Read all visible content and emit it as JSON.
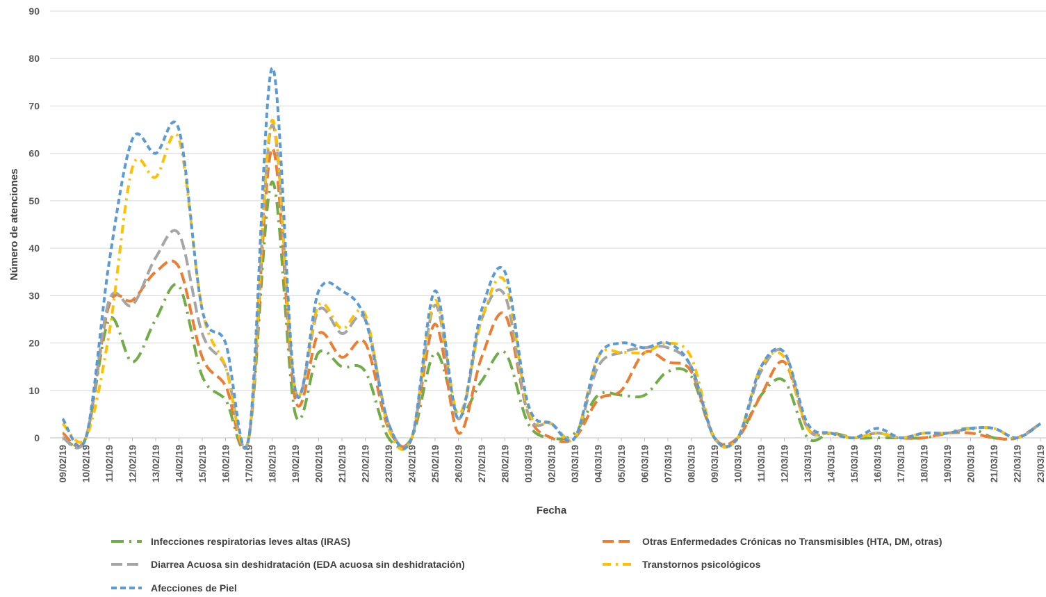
{
  "chart_data": {
    "type": "line",
    "xlabel": "Fecha",
    "ylabel": "Número de atenciones",
    "ylim": [
      0,
      90
    ],
    "yticks": [
      0,
      10,
      20,
      30,
      40,
      50,
      60,
      70,
      80,
      90
    ],
    "grid": "horizontal",
    "legend_position": "bottom",
    "categories": [
      "09/02/19",
      "10/02/19",
      "11/02/19",
      "12/02/19",
      "13/02/19",
      "14/02/19",
      "15/02/19",
      "16/02/19",
      "17/02/19",
      "18/02/19",
      "19/02/19",
      "20/02/19",
      "21/02/19",
      "22/02/19",
      "23/02/19",
      "24/02/19",
      "25/02/19",
      "26/02/19",
      "27/02/19",
      "28/02/19",
      "01/03/19",
      "02/03/19",
      "03/03/19",
      "04/03/19",
      "05/03/19",
      "06/03/19",
      "07/03/19",
      "08/03/19",
      "09/03/19",
      "10/03/19",
      "11/03/19",
      "12/03/19",
      "13/03/19",
      "14/03/19",
      "15/03/19",
      "16/03/19",
      "17/03/19",
      "18/03/19",
      "19/03/19",
      "20/03/19",
      "21/03/19",
      "22/03/19",
      "23/03/19"
    ],
    "series": [
      {
        "name": "Infecciones respiratorias leves altas (IRAS)",
        "color": "#70AD47",
        "dash": "long-dash-dot",
        "values": [
          0,
          0,
          25,
          16,
          25,
          32,
          13,
          8,
          0,
          54,
          5,
          18,
          15,
          14,
          0,
          0,
          18,
          5,
          12,
          18,
          3,
          0,
          1,
          9,
          9,
          9,
          14,
          13,
          0,
          0,
          9,
          12,
          0,
          1,
          0,
          0,
          0,
          0,
          1,
          2,
          0,
          0,
          3
        ]
      },
      {
        "name": "Otras Enfermedades Crónicas no Transmisibles (HTA, DM, otras)",
        "color": "#ED7D31",
        "dash": "long-dash",
        "values": [
          1,
          0,
          28,
          29,
          35,
          36,
          17,
          11,
          0,
          61,
          8,
          22,
          17,
          20,
          2,
          0,
          24,
          1,
          17,
          26,
          5,
          0,
          0,
          8,
          10,
          18,
          16,
          14,
          0,
          0,
          9,
          16,
          2,
          1,
          0,
          1,
          0,
          0,
          1,
          1,
          0,
          0,
          3
        ]
      },
      {
        "name": "Diarrea Acuosa sin deshidratación (EDA acuosa sin deshidratación)",
        "color": "#A5A5A5",
        "dash": "long-dash",
        "values": [
          0,
          0,
          29,
          28,
          38,
          43,
          22,
          15,
          0,
          66,
          10,
          27,
          22,
          25,
          3,
          0,
          28,
          4,
          25,
          30,
          5,
          3,
          0,
          15,
          18,
          19,
          19,
          15,
          0,
          0,
          14,
          18,
          2,
          1,
          0,
          1,
          0,
          1,
          1,
          2,
          2,
          0,
          3
        ]
      },
      {
        "name": "Transtornos psicológicos",
        "color": "#FFC000",
        "dash": "dash-dot",
        "values": [
          3,
          0,
          22,
          57,
          55,
          63,
          27,
          15,
          0,
          67,
          10,
          28,
          23,
          26,
          2,
          0,
          29,
          5,
          25,
          33,
          6,
          3,
          0,
          17,
          18,
          18,
          20,
          17,
          0,
          0,
          15,
          17,
          2,
          1,
          0,
          1,
          0,
          1,
          1,
          2,
          2,
          0,
          3
        ]
      },
      {
        "name": "Afecciones de Piel",
        "color": "#5B9BD5",
        "dash": "short-dash",
        "values": [
          4,
          0,
          37,
          63,
          60,
          65,
          27,
          20,
          0,
          78,
          10,
          31,
          31,
          25,
          3,
          0,
          31,
          4,
          27,
          35,
          7,
          3,
          0,
          17,
          20,
          19,
          20,
          15,
          0,
          0,
          15,
          18,
          3,
          1,
          0,
          2,
          0,
          1,
          1,
          2,
          2,
          0,
          3
        ]
      }
    ]
  }
}
